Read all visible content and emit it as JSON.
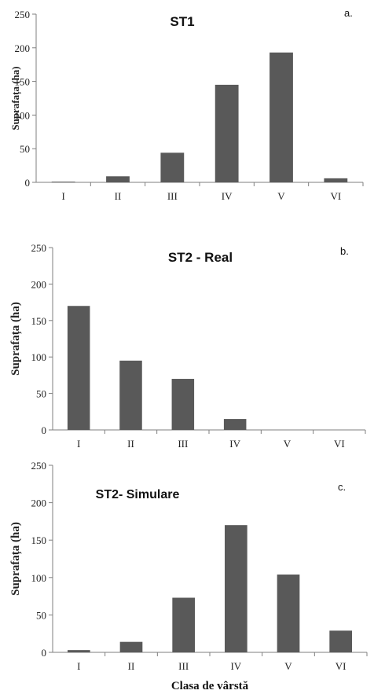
{
  "chart_data": [
    {
      "type": "bar",
      "panel": "a.",
      "title": "ST1",
      "ylabel": "Suprafața (ha)",
      "xlabel": "",
      "categories": [
        "I",
        "II",
        "III",
        "IV",
        "V",
        "VI"
      ],
      "values": [
        1,
        9,
        44,
        145,
        193,
        6
      ],
      "ylim": [
        0,
        250
      ],
      "yticks": [
        0,
        50,
        100,
        150,
        200,
        250
      ],
      "bar_color": "#595959",
      "grid": false,
      "legend": "none"
    },
    {
      "type": "bar",
      "panel": "b.",
      "title": "ST2 - Real",
      "ylabel": "Suprafața (ha)",
      "xlabel": "",
      "categories": [
        "I",
        "II",
        "III",
        "IV",
        "V",
        "VI"
      ],
      "values": [
        170,
        95,
        70,
        15,
        0,
        0
      ],
      "ylim": [
        0,
        250
      ],
      "yticks": [
        0,
        50,
        100,
        150,
        200,
        250
      ],
      "bar_color": "#595959",
      "grid": false,
      "legend": "none"
    },
    {
      "type": "bar",
      "panel": "c.",
      "title": "ST2-  Simulare",
      "ylabel": "Suprafața (ha)",
      "xlabel": "Clasa de vârstă",
      "categories": [
        "I",
        "II",
        "III",
        "IV",
        "V",
        "VI"
      ],
      "values": [
        3,
        14,
        73,
        170,
        104,
        29
      ],
      "ylim": [
        0,
        250
      ],
      "yticks": [
        0,
        50,
        100,
        150,
        200,
        250
      ],
      "bar_color": "#595959",
      "grid": false,
      "legend": "none"
    }
  ]
}
